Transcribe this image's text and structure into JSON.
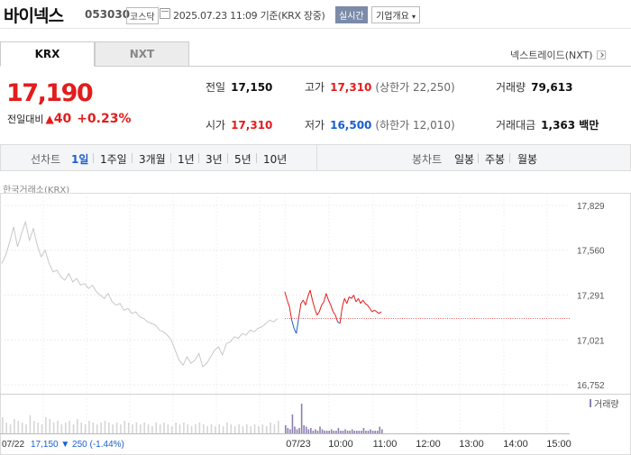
{
  "header": {
    "name": "바이넥스",
    "code": "053030",
    "market": "코스닥",
    "datetime": "2025.07.23 11:09",
    "basis": "기준(KRX 장중)",
    "realtime": "실시간",
    "company_info": "기업개요"
  },
  "exchange_tabs": [
    {
      "label": "KRX",
      "selected": true
    },
    {
      "label": "NXT",
      "selected": false
    }
  ],
  "nxt_link": "넥스트레이드(NXT)",
  "quote": {
    "price": "17,190",
    "change_label": "전일대비",
    "change_value": "40",
    "change_pct": "+0.23%",
    "up_color": "#e31c1c",
    "down_color": "#1a5fd1"
  },
  "stats": {
    "prev_close": {
      "label": "전일",
      "value": "17,150"
    },
    "high": {
      "label": "고가",
      "value": "17,310",
      "sub": "(상한가 22,250)"
    },
    "volume": {
      "label": "거래량",
      "value": "79,613"
    },
    "open": {
      "label": "시가",
      "value": "17,310"
    },
    "low": {
      "label": "저가",
      "value": "16,500",
      "sub": "(하한가 12,010)"
    },
    "amount": {
      "label": "거래대금",
      "value": "1,363 백만"
    }
  },
  "period_bar": {
    "line_label": "선차트",
    "periods": [
      "1일",
      "1주일",
      "3개월",
      "1년",
      "3년",
      "5년",
      "10년"
    ],
    "selected_period": "1일",
    "candle_label": "봉차트",
    "candles": [
      "일봉",
      "주봉",
      "월봉"
    ]
  },
  "chart_source": "한국거래소(KRX)",
  "chart_data": {
    "type": "line",
    "y_ticks": [
      "17,829",
      "17,560",
      "17,291",
      "17,021",
      "16,752"
    ],
    "ylim": [
      16752,
      17829
    ],
    "x_ticks": [
      "07/23",
      "10:00",
      "11:00",
      "12:00",
      "13:00",
      "14:00",
      "15:00"
    ],
    "prev_day": {
      "date": "07/22",
      "close": "17,150",
      "change": "▼ 250",
      "change_pct": "(-1.44%)",
      "series": [
        17480,
        17530,
        17610,
        17700,
        17580,
        17660,
        17730,
        17620,
        17690,
        17590,
        17520,
        17560,
        17480,
        17430,
        17440,
        17400,
        17380,
        17420,
        17370,
        17390,
        17350,
        17360,
        17330,
        17350,
        17310,
        17290,
        17270,
        17300,
        17250,
        17230,
        17240,
        17200,
        17210,
        17180,
        17190,
        17160,
        17150,
        17130,
        17120,
        17110,
        17080,
        17070,
        17050,
        17020,
        16960,
        16900,
        16870,
        16920,
        16880,
        16900,
        16940,
        16860,
        16880,
        16920,
        16960,
        16980,
        16930,
        17000,
        17010,
        17040,
        17030,
        17060,
        17050,
        17080,
        17070,
        17090,
        17100,
        17120,
        17140,
        17130,
        17150
      ]
    },
    "today": {
      "base": 17150,
      "series": [
        17310,
        17260,
        17220,
        17140,
        17090,
        17060,
        17150,
        17240,
        17260,
        17230,
        17280,
        17320,
        17260,
        17210,
        17170,
        17190,
        17230,
        17250,
        17300,
        17260,
        17230,
        17190,
        17170,
        17130,
        17120,
        17220,
        17270,
        17240,
        17280,
        17270,
        17290,
        17250,
        17270,
        17240,
        17260,
        17240,
        17230,
        17210,
        17190,
        17200,
        17190,
        17180,
        17190
      ]
    },
    "volume_label": "거래량",
    "volume_today": [
      6,
      4,
      3,
      14,
      5,
      3,
      4,
      22,
      6,
      5,
      3,
      4,
      2,
      3,
      2,
      5,
      3,
      2,
      2,
      2,
      3,
      2,
      2,
      4,
      2,
      2,
      3,
      2,
      2,
      3,
      2,
      2,
      2,
      2,
      4,
      2,
      2,
      3,
      2,
      2,
      2,
      5,
      3
    ],
    "volume_prev": [
      9,
      6,
      5,
      8,
      7,
      6,
      5,
      10,
      7,
      6,
      5,
      9,
      8,
      6,
      7,
      5,
      6,
      7,
      5,
      8,
      6,
      5,
      7,
      6,
      5,
      6,
      7,
      6,
      5,
      6,
      5,
      7,
      6,
      5,
      6,
      5,
      6,
      5,
      4,
      6,
      5,
      6,
      5,
      4,
      6,
      5,
      6,
      5,
      4,
      5,
      6,
      5,
      4,
      5,
      4,
      5,
      4,
      6,
      5,
      4,
      5,
      4,
      5,
      4,
      5,
      4,
      5,
      4,
      6,
      5,
      7
    ]
  }
}
